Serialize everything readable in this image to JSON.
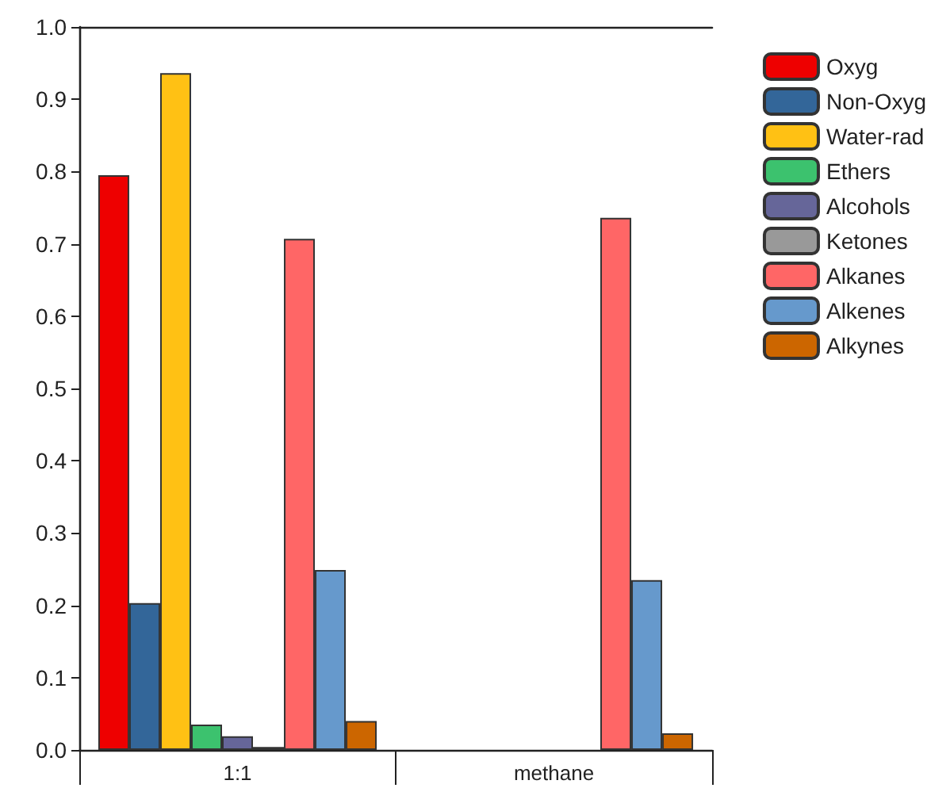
{
  "chart_data": {
    "type": "bar",
    "categories": [
      "1:1",
      "methane"
    ],
    "series": [
      {
        "name": "Oxyg",
        "color": "#ee0000",
        "values": [
          0.795,
          null
        ]
      },
      {
        "name": "Non-Oxyg",
        "color": "#336699",
        "values": [
          0.203,
          null
        ]
      },
      {
        "name": "Water-rad",
        "color": "#ffc114",
        "values": [
          0.936,
          null
        ]
      },
      {
        "name": "Ethers",
        "color": "#3cc26e",
        "values": [
          0.035,
          null
        ]
      },
      {
        "name": "Alcohols",
        "color": "#666699",
        "values": [
          0.019,
          null
        ]
      },
      {
        "name": "Ketones",
        "color": "#999999",
        "values": [
          0.004,
          null
        ]
      },
      {
        "name": "Alkanes",
        "color": "#ff6666",
        "values": [
          0.707,
          0.736
        ]
      },
      {
        "name": "Alkenes",
        "color": "#6699cc",
        "values": [
          0.249,
          0.235
        ]
      },
      {
        "name": "Alkynes",
        "color": "#cc6600",
        "values": [
          0.04,
          0.023
        ]
      }
    ],
    "ylim": [
      0,
      1
    ],
    "yticks": [
      {
        "value": 0,
        "label": "0.0"
      },
      0.1,
      0.2,
      0.3,
      0.4,
      0.5,
      0.6,
      0.7,
      0.8,
      0.9,
      {
        "value": 1,
        "label": "1.0"
      }
    ],
    "grid": false,
    "legend": "top right"
  }
}
